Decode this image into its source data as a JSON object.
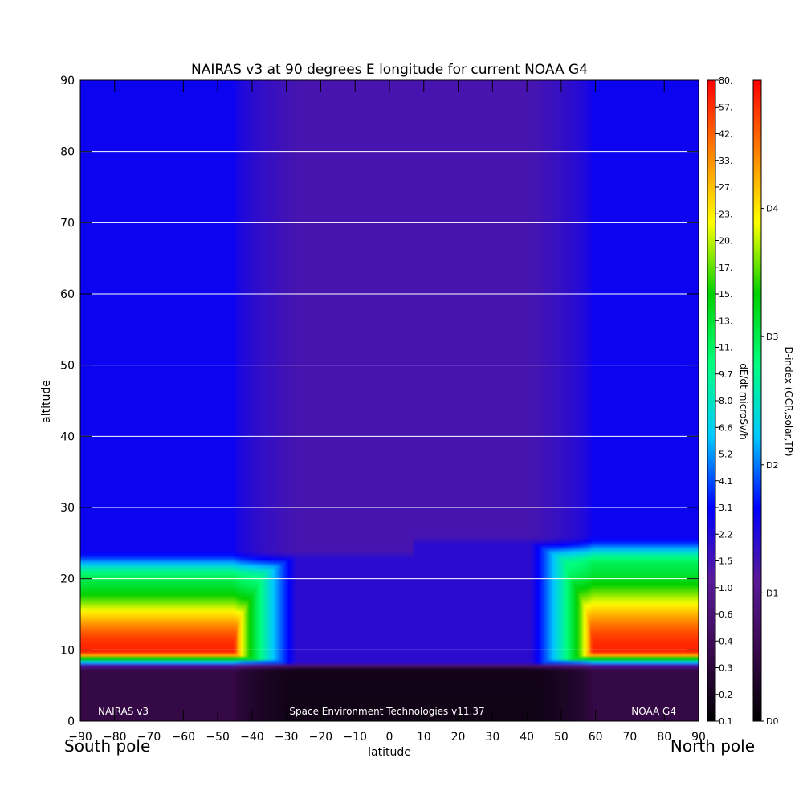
{
  "chart_data": {
    "type": "heatmap",
    "title": "NAIRAS v3 at 90 degrees E longitude for current NOAA G4",
    "xlabel": "latitude",
    "ylabel": "altitude",
    "xlim": [
      -90,
      90
    ],
    "ylim": [
      0,
      90
    ],
    "x_ticks": [
      -90,
      -80,
      -70,
      -60,
      -50,
      -40,
      -30,
      -20,
      -10,
      0,
      10,
      20,
      30,
      40,
      50,
      60,
      70,
      80,
      90
    ],
    "y_ticks": [
      0,
      10,
      20,
      30,
      40,
      50,
      60,
      70,
      80,
      90
    ],
    "x_edge_labels": {
      "left": "South pole",
      "right": "North pole"
    },
    "footer": {
      "left": "NAIRAS v3",
      "center": "Space Environment Technologies v11.37",
      "right": "NOAA G4"
    },
    "grid": "horizontal",
    "colorbar_dose": {
      "label": "dE/dt microSv/h",
      "ticks": [
        "0.1",
        "0.2",
        "0.3",
        "0.4",
        "0.6",
        "1.0",
        "1.5",
        "2.2",
        "3.1",
        "4.1",
        "5.2",
        "6.6",
        "8.0",
        "9.7",
        "11.",
        "13.",
        "15.",
        "17.",
        "20.",
        "23.",
        "27.",
        "33.",
        "42.",
        "57.",
        "80."
      ]
    },
    "colorbar_dindex": {
      "label": "D-index (GCR,solar,TP)",
      "ticks": [
        "D0",
        "D1",
        "D2",
        "D3",
        "D4"
      ],
      "tick_positions": [
        0,
        1,
        2,
        3,
        4
      ],
      "max": 5
    },
    "features": {
      "polar_cap_boundary_latitude": {
        "south": -43,
        "north": 57
      },
      "polar_cap_lower_altitude": {
        "south": 21,
        "north": 23
      },
      "transition_width_deg": 18,
      "center_latitude": 7,
      "low_altitude_floor_km": 10
    }
  },
  "colors": {
    "scale": [
      "#000000",
      "#3a0a4e",
      "#5a1a9a",
      "#0000ff",
      "#00c8ff",
      "#00ff80",
      "#00d000",
      "#ffff00",
      "#ff8000",
      "#ff0000"
    ],
    "grid": "#ffffff",
    "text": "#000000",
    "footer_text": "#ffffff"
  }
}
